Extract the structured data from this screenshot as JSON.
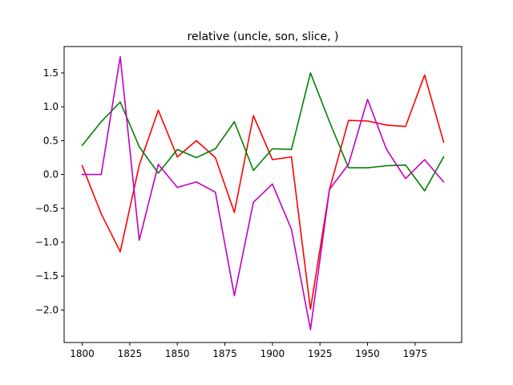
{
  "chart_data": {
    "type": "line",
    "title": "relative (uncle, son, slice, )",
    "xlabel": "",
    "ylabel": "",
    "xlim": [
      1790.5,
      1999.5
    ],
    "ylim": [
      -2.48,
      1.89
    ],
    "x_ticks": [
      1800,
      1825,
      1850,
      1875,
      1900,
      1925,
      1950,
      1975
    ],
    "y_ticks": [
      -2.0,
      -1.5,
      -1.0,
      -0.5,
      0.0,
      0.5,
      1.0,
      1.5
    ],
    "x_tick_labels": [
      "1800",
      "1825",
      "1850",
      "1875",
      "1900",
      "1925",
      "1950",
      "1975"
    ],
    "y_tick_labels": [
      "−2.0",
      "−1.5",
      "−1.0",
      "−0.5",
      "0.0",
      "0.5",
      "1.0",
      "1.5"
    ],
    "grid": false,
    "x": [
      1800,
      1810,
      1820,
      1830,
      1840,
      1850,
      1860,
      1870,
      1880,
      1890,
      1900,
      1910,
      1920,
      1930,
      1940,
      1950,
      1960,
      1970,
      1980,
      1990
    ],
    "series": [
      {
        "color": "#ff0000",
        "values": [
          0.13,
          -0.58,
          -1.14,
          0.14,
          0.95,
          0.26,
          0.5,
          0.25,
          -0.56,
          0.87,
          0.22,
          0.26,
          -1.99,
          -0.22,
          0.8,
          0.79,
          0.73,
          0.71,
          1.47,
          0.48
        ]
      },
      {
        "color": "#008000",
        "values": [
          0.43,
          0.78,
          1.07,
          0.41,
          0.02,
          0.37,
          0.25,
          0.38,
          0.78,
          0.06,
          0.38,
          0.37,
          1.5,
          0.78,
          0.1,
          0.1,
          0.13,
          0.14,
          -0.24,
          0.26
        ]
      },
      {
        "color": "#bf00bf",
        "values": [
          0.0,
          0.0,
          1.74,
          -0.97,
          0.15,
          -0.19,
          -0.11,
          -0.26,
          -1.79,
          -0.41,
          -0.14,
          -0.81,
          -2.29,
          -0.22,
          0.15,
          1.11,
          0.37,
          -0.06,
          0.22,
          -0.11
        ]
      }
    ]
  }
}
